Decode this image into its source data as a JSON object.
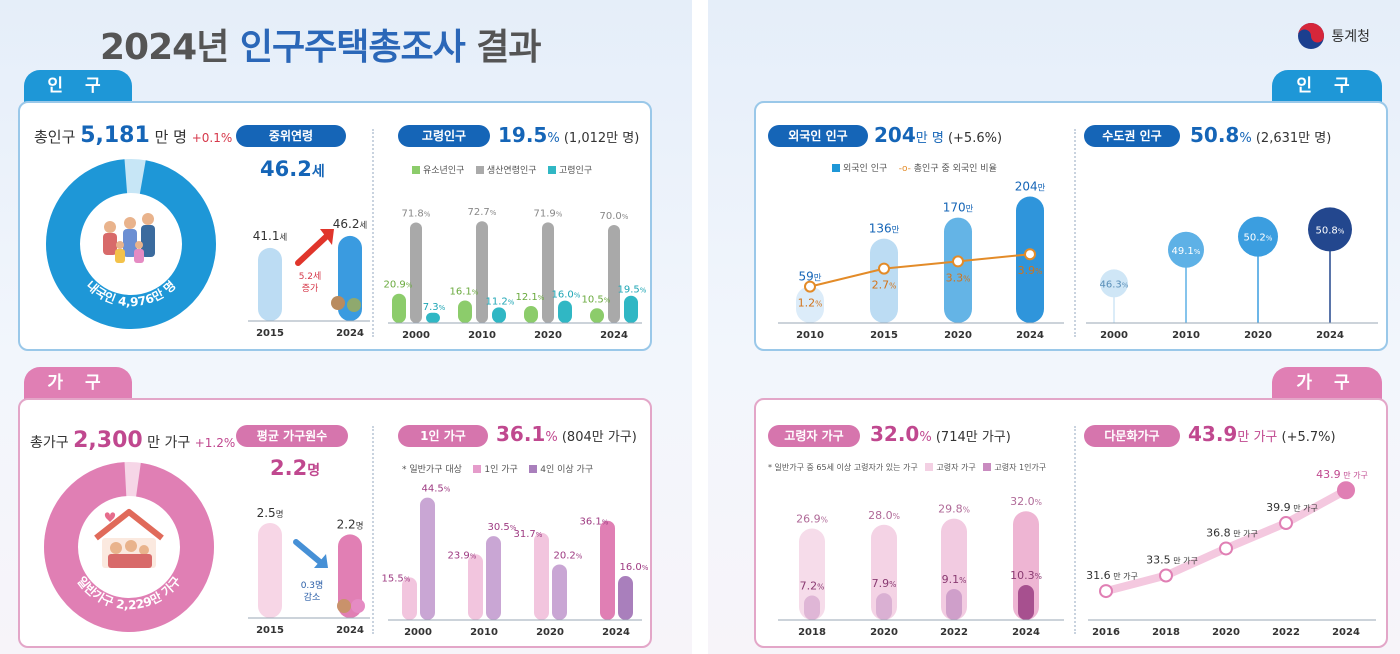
{
  "title": {
    "year": "2024년",
    "highlight": "인구주택총조사",
    "rest": "결과"
  },
  "agency": "통계청",
  "tabs": {
    "population": "인 구",
    "household": "가 구"
  },
  "population": {
    "total_label": "총인구",
    "total_value": "5,181",
    "total_unit": "만 명",
    "total_change": "+0.1%",
    "donut_label": "내국인 4,976만 명",
    "median_age": {
      "label": "중위연령",
      "headline": "46.2",
      "headline_unit": "세",
      "values": [
        "41.1",
        "46.2"
      ],
      "unit": "세",
      "years": [
        "2015",
        "2024"
      ],
      "increase": "5.2세",
      "increase_word": "증가"
    },
    "elderly": {
      "label": "고령인구",
      "pct": "19.5",
      "pct_unit": "%",
      "count": "(1,012만 명)",
      "legend": [
        "유소년인구",
        "생산연령인구",
        "고령인구"
      ],
      "years": [
        "2000",
        "2010",
        "2020",
        "2024"
      ],
      "youth": [
        "20.9",
        "16.1",
        "12.1",
        "10.5"
      ],
      "working": [
        "71.8",
        "72.7",
        "71.9",
        "70.0"
      ],
      "old": [
        "7.3",
        "11.2",
        "16.0",
        "19.5"
      ],
      "unit": "%"
    },
    "foreign": {
      "label": "외국인 인구",
      "value": "204",
      "unit": "만 명",
      "change": "(+5.6%)",
      "legend": [
        "외국인 인구",
        "총인구 중 외국인 비율"
      ],
      "years": [
        "2010",
        "2015",
        "2020",
        "2024"
      ],
      "counts": [
        "59",
        "136",
        "170",
        "204"
      ],
      "count_unit": "만",
      "ratios": [
        "1.2",
        "2.7",
        "3.3",
        "3.9"
      ],
      "ratio_unit": "%"
    },
    "capital": {
      "label": "수도권 인구",
      "value": "50.8",
      "unit": "%",
      "count": "(2,631만 명)",
      "years": [
        "2000",
        "2010",
        "2020",
        "2024"
      ],
      "values": [
        "46.3",
        "49.1",
        "50.2",
        "50.8"
      ],
      "value_unit": "%"
    }
  },
  "household": {
    "total_label": "총가구",
    "total_value": "2,300",
    "total_unit": "만 가구",
    "total_change": "+1.2%",
    "donut_label": "일반가구 2,229만 가구",
    "avg_size": {
      "label": "평균 가구원수",
      "headline": "2.2",
      "headline_unit": "명",
      "values": [
        "2.5",
        "2.2"
      ],
      "unit": "명",
      "years": [
        "2015",
        "2024"
      ],
      "decrease": "0.3명",
      "decrease_word": "감소"
    },
    "single": {
      "label": "1인 가구",
      "pct": "36.1",
      "pct_unit": "%",
      "count": "(804만 가구)",
      "note": "* 일반가구 대상",
      "legend": [
        "1인 가구",
        "4인 이상 가구"
      ],
      "years": [
        "2000",
        "2010",
        "2020",
        "2024"
      ],
      "one": [
        "15.5",
        "23.9",
        "31.7",
        "36.1"
      ],
      "four": [
        "44.5",
        "30.5",
        "20.2",
        "16.0"
      ],
      "unit": "%"
    },
    "elderly_hh": {
      "label": "고령자 가구",
      "pct": "32.0",
      "pct_unit": "%",
      "count": "(714만 가구)",
      "note": "* 일반가구 중 65세 이상 고령자가 있는 가구",
      "legend": [
        "고령자 가구",
        "고령자 1인가구"
      ],
      "years": [
        "2018",
        "2020",
        "2022",
        "2024"
      ],
      "elderly": [
        "26.9",
        "28.0",
        "29.8",
        "32.0"
      ],
      "alone": [
        "7.2",
        "7.9",
        "9.1",
        "10.3"
      ],
      "unit": "%"
    },
    "multicultural": {
      "label": "다문화가구",
      "value": "43.9",
      "unit": "만 가구",
      "change": "(+5.7%)",
      "years": [
        "2016",
        "2018",
        "2020",
        "2022",
        "2024"
      ],
      "values": [
        "31.6",
        "33.5",
        "36.8",
        "39.9",
        "43.9"
      ],
      "value_unit": "만 가구"
    }
  }
}
